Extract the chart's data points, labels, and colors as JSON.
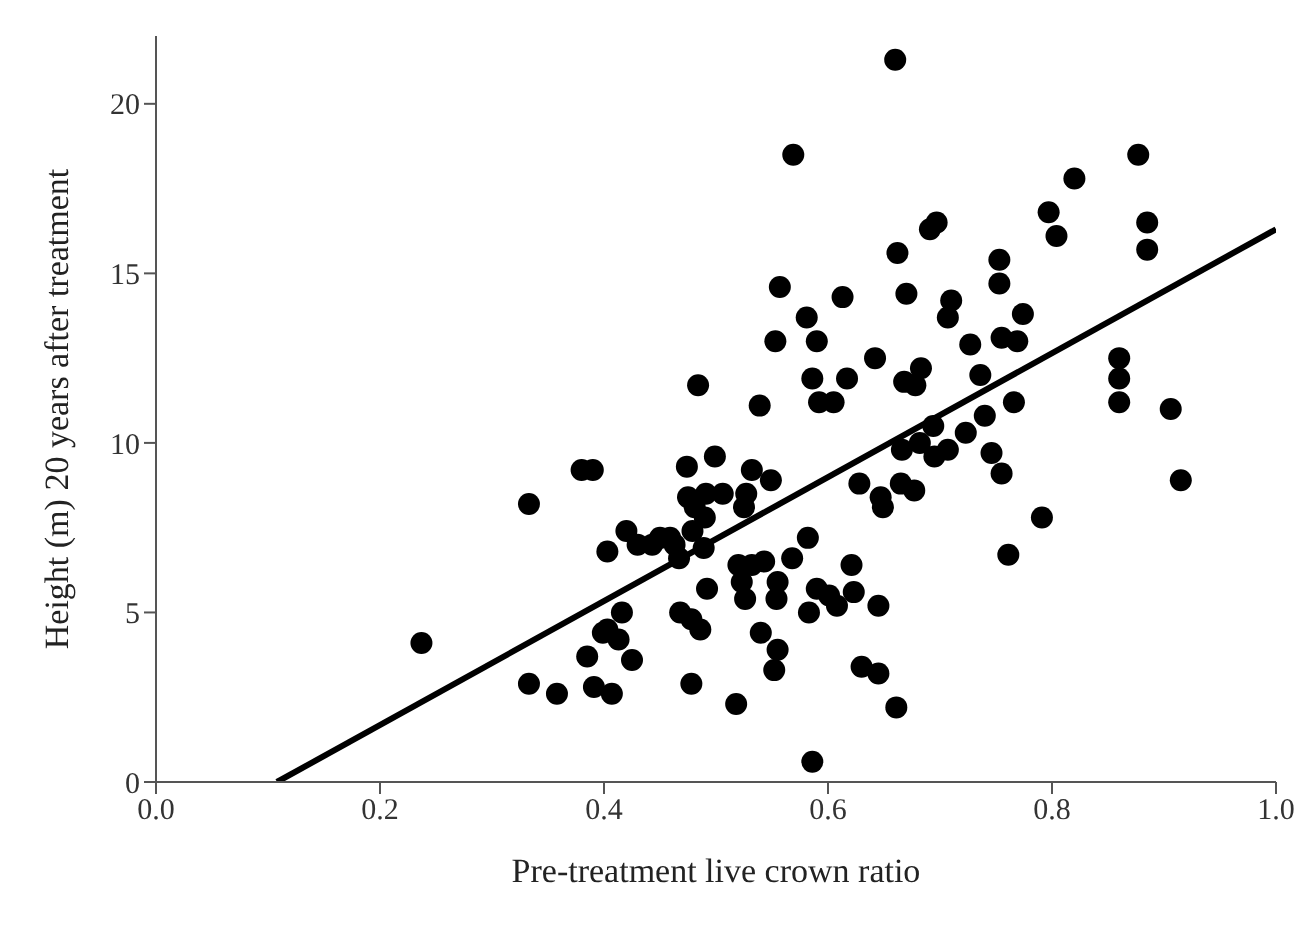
{
  "chart_data": {
    "type": "scatter",
    "xlabel": "Pre-treatment live crown ratio",
    "ylabel": "Height (m) 20 years after treatment",
    "xlim": [
      0,
      1
    ],
    "xticks": [
      {
        "value": 0,
        "label": "0.0"
      },
      {
        "value": 0.2,
        "label": "0.2"
      },
      {
        "value": 0.4,
        "label": "0.4"
      },
      {
        "value": 0.6,
        "label": "0.6"
      },
      {
        "value": 0.8,
        "label": "0.8"
      },
      {
        "value": 1,
        "label": "1.0"
      }
    ],
    "ylim": [
      0,
      22
    ],
    "yticks": [
      0,
      5,
      10,
      15,
      20
    ],
    "marker": "circle",
    "series": [
      {
        "color": "#000000",
        "x": [
          0.237,
          0.333,
          0.333,
          0.358,
          0.38,
          0.39,
          0.385,
          0.391,
          0.399,
          0.403,
          0.403,
          0.407,
          0.413,
          0.416,
          0.42,
          0.425,
          0.43,
          0.443,
          0.45,
          0.459,
          0.463,
          0.467,
          0.468,
          0.474,
          0.475,
          0.478,
          0.478,
          0.479,
          0.481,
          0.484,
          0.486,
          0.489,
          0.49,
          0.491,
          0.492,
          0.499,
          0.506,
          0.518,
          0.52,
          0.523,
          0.525,
          0.526,
          0.527,
          0.532,
          0.532,
          0.539,
          0.54,
          0.543,
          0.549,
          0.552,
          0.553,
          0.554,
          0.555,
          0.555,
          0.557,
          0.568,
          0.569,
          0.581,
          0.582,
          0.583,
          0.586,
          0.586,
          0.59,
          0.59,
          0.592,
          0.601,
          0.605,
          0.608,
          0.613,
          0.617,
          0.621,
          0.623,
          0.628,
          0.63,
          0.642,
          0.645,
          0.645,
          0.647,
          0.649,
          0.66,
          0.661,
          0.662,
          0.665,
          0.666,
          0.668,
          0.67,
          0.677,
          0.678,
          0.682,
          0.683,
          0.691,
          0.694,
          0.695,
          0.697,
          0.707,
          0.707,
          0.71,
          0.723,
          0.727,
          0.736,
          0.74,
          0.746,
          0.753,
          0.753,
          0.755,
          0.755,
          0.761,
          0.766,
          0.769,
          0.774,
          0.791,
          0.797,
          0.804,
          0.82,
          0.86,
          0.86,
          0.86,
          0.877,
          0.885,
          0.885,
          0.906,
          0.915
        ],
        "values": [
          4.1,
          8.2,
          2.9,
          2.6,
          9.2,
          9.2,
          3.7,
          2.8,
          4.4,
          6.8,
          4.5,
          2.6,
          4.2,
          5.0,
          7.4,
          3.6,
          7.0,
          7.0,
          7.2,
          7.2,
          7.0,
          6.6,
          5.0,
          9.3,
          8.4,
          4.8,
          2.9,
          7.4,
          8.1,
          11.7,
          4.5,
          6.9,
          7.8,
          8.5,
          5.7,
          9.6,
          8.5,
          2.3,
          6.4,
          5.9,
          8.1,
          5.4,
          8.5,
          9.2,
          6.4,
          11.1,
          4.4,
          6.5,
          8.9,
          3.3,
          13.0,
          5.4,
          5.9,
          3.9,
          14.6,
          6.6,
          18.5,
          13.7,
          7.2,
          5.0,
          11.9,
          0.6,
          13.0,
          5.7,
          11.2,
          5.5,
          11.2,
          5.2,
          14.3,
          11.9,
          6.4,
          5.6,
          8.8,
          3.4,
          12.5,
          5.2,
          3.2,
          8.4,
          8.1,
          21.3,
          2.2,
          15.6,
          8.8,
          9.8,
          11.8,
          14.4,
          8.6,
          11.7,
          10.0,
          12.2,
          16.3,
          10.5,
          9.6,
          16.5,
          9.8,
          13.7,
          14.2,
          10.3,
          12.9,
          12.0,
          10.8,
          9.7,
          15.4,
          14.7,
          13.1,
          9.1,
          6.7,
          11.2,
          13.0,
          13.8,
          7.8,
          16.8,
          16.1,
          17.8,
          12.5,
          11.9,
          11.2,
          18.5,
          16.5,
          15.7,
          11.0,
          8.9
        ]
      },
      {
        "type": "line",
        "color": "#000000",
        "marker": "none",
        "x": [
          0.108,
          1.0
        ],
        "values": [
          0,
          16.3
        ]
      }
    ]
  }
}
